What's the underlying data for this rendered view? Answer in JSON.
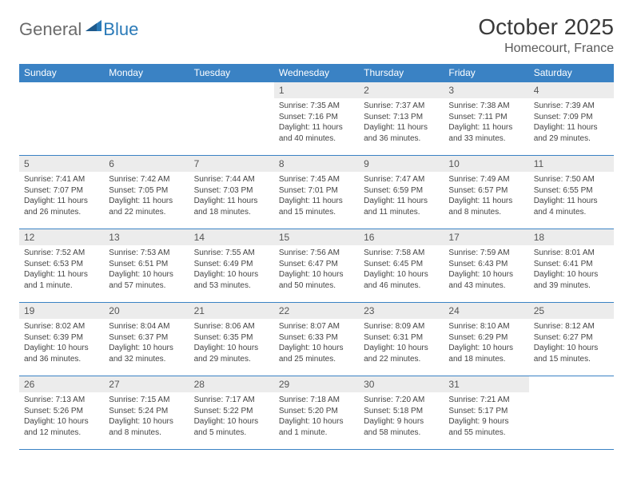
{
  "logo": {
    "general": "General",
    "blue": "Blue"
  },
  "title": "October 2025",
  "location": "Homecourt, France",
  "colors": {
    "header_bg": "#3a82c4",
    "header_text": "#ffffff",
    "daynum_bg": "#ececec",
    "border": "#3a82c4",
    "logo_gray": "#6b6b6b",
    "logo_blue": "#2a7ab8"
  },
  "weekdays": [
    "Sunday",
    "Monday",
    "Tuesday",
    "Wednesday",
    "Thursday",
    "Friday",
    "Saturday"
  ],
  "weeks": [
    [
      {
        "n": "",
        "sr": "",
        "ss": "",
        "dl": ""
      },
      {
        "n": "",
        "sr": "",
        "ss": "",
        "dl": ""
      },
      {
        "n": "",
        "sr": "",
        "ss": "",
        "dl": ""
      },
      {
        "n": "1",
        "sr": "Sunrise: 7:35 AM",
        "ss": "Sunset: 7:16 PM",
        "dl": "Daylight: 11 hours and 40 minutes."
      },
      {
        "n": "2",
        "sr": "Sunrise: 7:37 AM",
        "ss": "Sunset: 7:13 PM",
        "dl": "Daylight: 11 hours and 36 minutes."
      },
      {
        "n": "3",
        "sr": "Sunrise: 7:38 AM",
        "ss": "Sunset: 7:11 PM",
        "dl": "Daylight: 11 hours and 33 minutes."
      },
      {
        "n": "4",
        "sr": "Sunrise: 7:39 AM",
        "ss": "Sunset: 7:09 PM",
        "dl": "Daylight: 11 hours and 29 minutes."
      }
    ],
    [
      {
        "n": "5",
        "sr": "Sunrise: 7:41 AM",
        "ss": "Sunset: 7:07 PM",
        "dl": "Daylight: 11 hours and 26 minutes."
      },
      {
        "n": "6",
        "sr": "Sunrise: 7:42 AM",
        "ss": "Sunset: 7:05 PM",
        "dl": "Daylight: 11 hours and 22 minutes."
      },
      {
        "n": "7",
        "sr": "Sunrise: 7:44 AM",
        "ss": "Sunset: 7:03 PM",
        "dl": "Daylight: 11 hours and 18 minutes."
      },
      {
        "n": "8",
        "sr": "Sunrise: 7:45 AM",
        "ss": "Sunset: 7:01 PM",
        "dl": "Daylight: 11 hours and 15 minutes."
      },
      {
        "n": "9",
        "sr": "Sunrise: 7:47 AM",
        "ss": "Sunset: 6:59 PM",
        "dl": "Daylight: 11 hours and 11 minutes."
      },
      {
        "n": "10",
        "sr": "Sunrise: 7:49 AM",
        "ss": "Sunset: 6:57 PM",
        "dl": "Daylight: 11 hours and 8 minutes."
      },
      {
        "n": "11",
        "sr": "Sunrise: 7:50 AM",
        "ss": "Sunset: 6:55 PM",
        "dl": "Daylight: 11 hours and 4 minutes."
      }
    ],
    [
      {
        "n": "12",
        "sr": "Sunrise: 7:52 AM",
        "ss": "Sunset: 6:53 PM",
        "dl": "Daylight: 11 hours and 1 minute."
      },
      {
        "n": "13",
        "sr": "Sunrise: 7:53 AM",
        "ss": "Sunset: 6:51 PM",
        "dl": "Daylight: 10 hours and 57 minutes."
      },
      {
        "n": "14",
        "sr": "Sunrise: 7:55 AM",
        "ss": "Sunset: 6:49 PM",
        "dl": "Daylight: 10 hours and 53 minutes."
      },
      {
        "n": "15",
        "sr": "Sunrise: 7:56 AM",
        "ss": "Sunset: 6:47 PM",
        "dl": "Daylight: 10 hours and 50 minutes."
      },
      {
        "n": "16",
        "sr": "Sunrise: 7:58 AM",
        "ss": "Sunset: 6:45 PM",
        "dl": "Daylight: 10 hours and 46 minutes."
      },
      {
        "n": "17",
        "sr": "Sunrise: 7:59 AM",
        "ss": "Sunset: 6:43 PM",
        "dl": "Daylight: 10 hours and 43 minutes."
      },
      {
        "n": "18",
        "sr": "Sunrise: 8:01 AM",
        "ss": "Sunset: 6:41 PM",
        "dl": "Daylight: 10 hours and 39 minutes."
      }
    ],
    [
      {
        "n": "19",
        "sr": "Sunrise: 8:02 AM",
        "ss": "Sunset: 6:39 PM",
        "dl": "Daylight: 10 hours and 36 minutes."
      },
      {
        "n": "20",
        "sr": "Sunrise: 8:04 AM",
        "ss": "Sunset: 6:37 PM",
        "dl": "Daylight: 10 hours and 32 minutes."
      },
      {
        "n": "21",
        "sr": "Sunrise: 8:06 AM",
        "ss": "Sunset: 6:35 PM",
        "dl": "Daylight: 10 hours and 29 minutes."
      },
      {
        "n": "22",
        "sr": "Sunrise: 8:07 AM",
        "ss": "Sunset: 6:33 PM",
        "dl": "Daylight: 10 hours and 25 minutes."
      },
      {
        "n": "23",
        "sr": "Sunrise: 8:09 AM",
        "ss": "Sunset: 6:31 PM",
        "dl": "Daylight: 10 hours and 22 minutes."
      },
      {
        "n": "24",
        "sr": "Sunrise: 8:10 AM",
        "ss": "Sunset: 6:29 PM",
        "dl": "Daylight: 10 hours and 18 minutes."
      },
      {
        "n": "25",
        "sr": "Sunrise: 8:12 AM",
        "ss": "Sunset: 6:27 PM",
        "dl": "Daylight: 10 hours and 15 minutes."
      }
    ],
    [
      {
        "n": "26",
        "sr": "Sunrise: 7:13 AM",
        "ss": "Sunset: 5:26 PM",
        "dl": "Daylight: 10 hours and 12 minutes."
      },
      {
        "n": "27",
        "sr": "Sunrise: 7:15 AM",
        "ss": "Sunset: 5:24 PM",
        "dl": "Daylight: 10 hours and 8 minutes."
      },
      {
        "n": "28",
        "sr": "Sunrise: 7:17 AM",
        "ss": "Sunset: 5:22 PM",
        "dl": "Daylight: 10 hours and 5 minutes."
      },
      {
        "n": "29",
        "sr": "Sunrise: 7:18 AM",
        "ss": "Sunset: 5:20 PM",
        "dl": "Daylight: 10 hours and 1 minute."
      },
      {
        "n": "30",
        "sr": "Sunrise: 7:20 AM",
        "ss": "Sunset: 5:18 PM",
        "dl": "Daylight: 9 hours and 58 minutes."
      },
      {
        "n": "31",
        "sr": "Sunrise: 7:21 AM",
        "ss": "Sunset: 5:17 PM",
        "dl": "Daylight: 9 hours and 55 minutes."
      },
      {
        "n": "",
        "sr": "",
        "ss": "",
        "dl": ""
      }
    ]
  ]
}
